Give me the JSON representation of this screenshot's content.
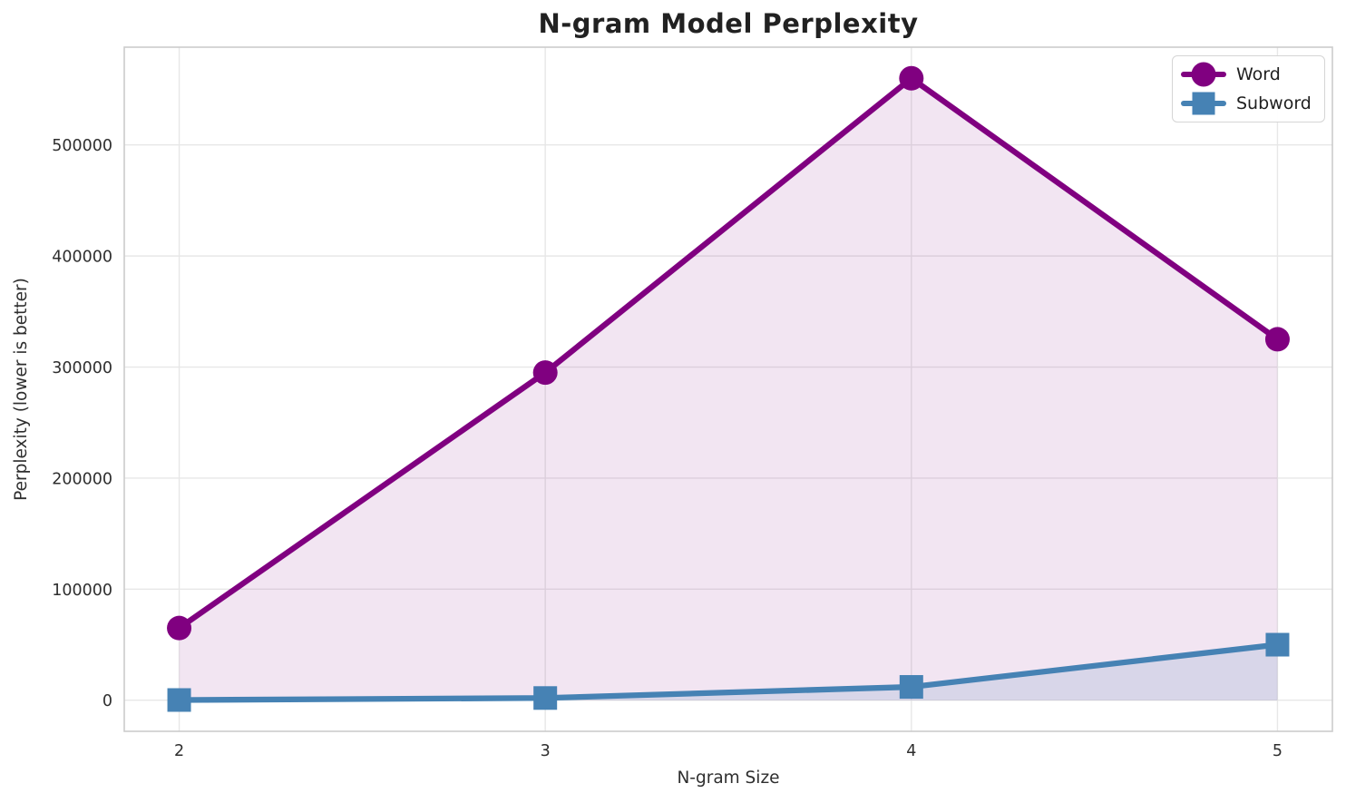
{
  "chart_data": {
    "type": "line",
    "title": "N-gram Model Perplexity",
    "xlabel": "N-gram Size",
    "ylabel": "Perplexity (lower is better)",
    "x": [
      2,
      3,
      4,
      5
    ],
    "series": [
      {
        "name": "Word",
        "values": [
          65000,
          295000,
          560000,
          325000
        ],
        "color": "#800080",
        "marker": "circle",
        "area_fill_to_zero": true,
        "fill_alpha": 0.1
      },
      {
        "name": "Subword",
        "values": [
          200,
          2000,
          12000,
          50000
        ],
        "color": "#4682B4",
        "marker": "square",
        "area_fill_to_zero": true,
        "fill_alpha": 0.15
      }
    ],
    "xticks": {
      "values": [
        2,
        3,
        4,
        5
      ],
      "labels": [
        "2",
        "3",
        "4",
        "5"
      ]
    },
    "yticks": {
      "values": [
        0,
        100000,
        200000,
        300000,
        400000,
        500000
      ],
      "labels": [
        "0",
        "100000",
        "200000",
        "300000",
        "400000",
        "500000"
      ]
    },
    "xlim": [
      1.85,
      5.15
    ],
    "ylim": [
      -28000,
      588000
    ],
    "grid": true,
    "legend": {
      "position": "upper right",
      "entries": [
        "Word",
        "Subword"
      ]
    }
  },
  "style": {
    "grid_color": "#e7e7e7",
    "spine_color": "#cccccc",
    "tick_text_color": "#2e2e2e",
    "title_color": "#212121",
    "word_color": "#800080",
    "subword_color": "#4682B4",
    "background": "#ffffff"
  }
}
